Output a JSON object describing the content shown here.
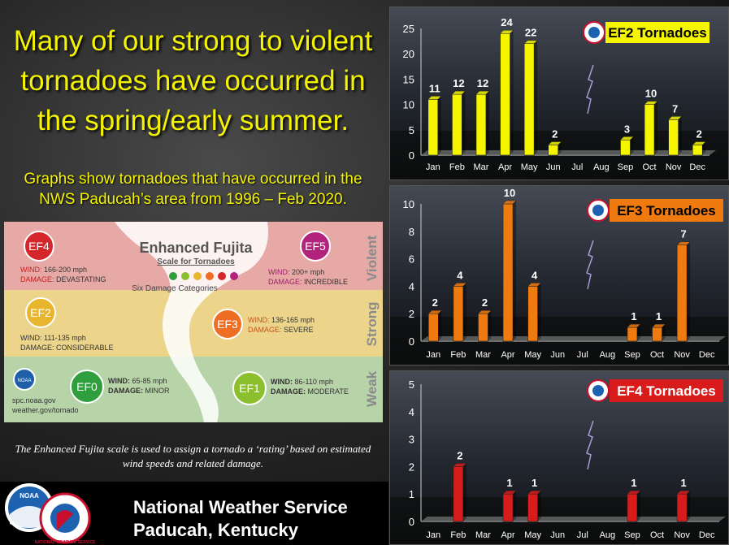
{
  "headline": "Many of our strong to violent tornadoes have occurred in the spring/early summer.",
  "subheadline": "Graphs show tornadoes that have occurred in the NWS Paducah’s area from 1996 – Feb 2020.",
  "caption": "The Enhanced Fujita scale is used to assign a tornado a ‘rating’ based on estimated wind speeds and related damage.",
  "footer": {
    "line1": "National Weather Service",
    "line2": "Paducah, Kentucky",
    "noaa_logo_text": "NOAA",
    "nws_logo_text": "NATIONAL WEATHER SERVICE"
  },
  "ef_scale": {
    "title": "Enhanced Fujita",
    "subtitle": "Scale for Tornadoes",
    "categories_label": "Six Damage Categories",
    "dot_colors": [
      "#2f9e3c",
      "#8cbf2e",
      "#e8b52d",
      "#ee6e23",
      "#d4262b",
      "#b2237e"
    ],
    "rows": [
      "Violent",
      "Strong",
      "Weak"
    ],
    "ef4": {
      "badge": "EF4",
      "wind_label": "WIND:",
      "wind": "166-200 mph",
      "damage_label": "DAMAGE:",
      "damage": "DEVASTATING"
    },
    "ef5": {
      "badge": "EF5",
      "wind_label": "WIND:",
      "wind": "200+ mph",
      "damage_label": "DAMAGE:",
      "damage": "INCREDIBLE"
    },
    "ef2": {
      "badge": "EF2",
      "wind_label": "WIND:",
      "wind": "111-135 mph",
      "damage_label": "DAMAGE:",
      "damage": "CONSIDERABLE"
    },
    "ef3": {
      "badge": "EF3",
      "wind_label": "WIND:",
      "wind": "136-165 mph",
      "damage_label": "DAMAGE:",
      "damage": "SEVERE"
    },
    "ef0": {
      "badge": "EF0",
      "wind_label": "WIND:",
      "wind": "65-85 mph",
      "damage_label": "DAMAGE:",
      "damage": "MINOR"
    },
    "ef1": {
      "badge": "EF1",
      "wind_label": "WIND:",
      "wind": "86-110 mph",
      "damage_label": "DAMAGE:",
      "damage": "MODERATE"
    },
    "noaa_label": "NOAA",
    "link1": "spc.noaa.gov",
    "link2": "weather.gov/tornado"
  },
  "chart_data": [
    {
      "type": "bar",
      "title": "EF2 Tornadoes",
      "categories": [
        "Jan",
        "Feb",
        "Mar",
        "Apr",
        "May",
        "Jun",
        "Jul",
        "Aug",
        "Sep",
        "Oct",
        "Nov",
        "Dec"
      ],
      "values": [
        11,
        12,
        12,
        24,
        22,
        2,
        null,
        null,
        3,
        10,
        7,
        2
      ],
      "ylim": [
        0,
        25
      ],
      "yticks": [
        0,
        5,
        10,
        15,
        20,
        25
      ],
      "color": "#f5f500",
      "title_bg": "#f5f500",
      "title_color": "#000000"
    },
    {
      "type": "bar",
      "title": "EF3 Tornadoes",
      "categories": [
        "Jan",
        "Feb",
        "Mar",
        "Apr",
        "May",
        "Jun",
        "Jul",
        "Aug",
        "Sep",
        "Oct",
        "Nov",
        "Dec"
      ],
      "values": [
        2,
        4,
        2,
        10,
        4,
        null,
        null,
        null,
        1,
        1,
        7,
        null
      ],
      "ylim": [
        0,
        10
      ],
      "yticks": [
        0,
        2,
        4,
        6,
        8,
        10
      ],
      "color": "#ef7a10",
      "title_bg": "#ef7a10",
      "title_color": "#000000"
    },
    {
      "type": "bar",
      "title": "EF4 Tornadoes",
      "categories": [
        "Jan",
        "Feb",
        "Mar",
        "Apr",
        "May",
        "Jun",
        "Jul",
        "Aug",
        "Sep",
        "Oct",
        "Nov",
        "Dec"
      ],
      "values": [
        null,
        2,
        null,
        1,
        1,
        null,
        null,
        null,
        1,
        null,
        1,
        null
      ],
      "ylim": [
        0,
        5
      ],
      "yticks": [
        0,
        1,
        2,
        3,
        4,
        5
      ],
      "color": "#d81c1c",
      "title_bg": "#d81c1c",
      "title_color": "#ffffff"
    }
  ]
}
